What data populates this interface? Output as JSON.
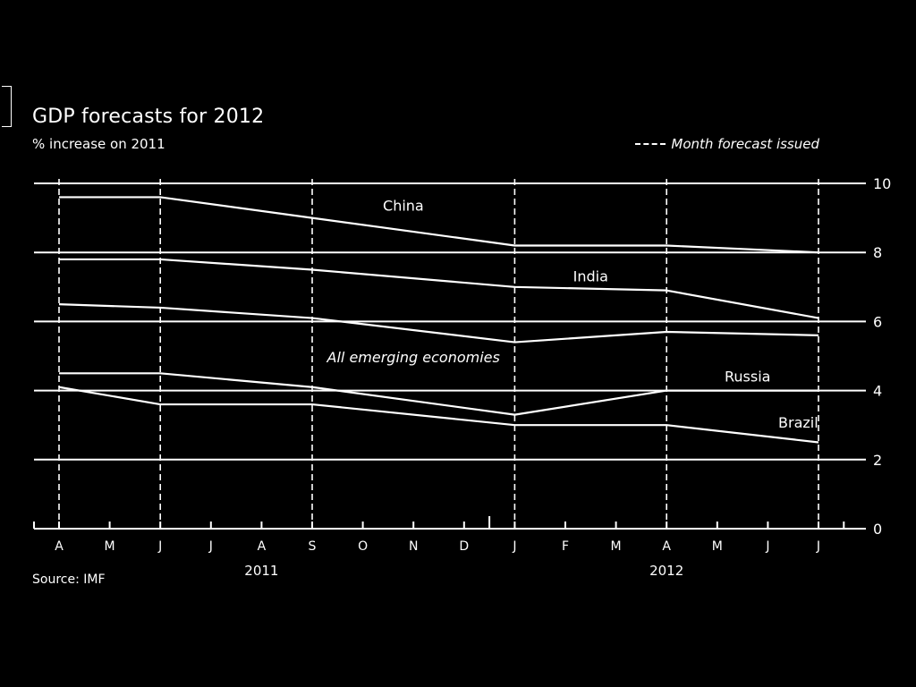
{
  "chart_data": {
    "type": "line",
    "title": "GDP forecasts for 2012",
    "subtitle": "% increase on 2011",
    "source": "Source: IMF",
    "legend_label": "Month forecast issued",
    "legend_position": "top-right",
    "x_ticks": [
      "A",
      "M",
      "J",
      "J",
      "A",
      "S",
      "O",
      "N",
      "D",
      "J",
      "F",
      "M",
      "A",
      "M",
      "J",
      "J"
    ],
    "year_labels": [
      {
        "label": "2011",
        "at": 4
      },
      {
        "label": "2012",
        "at": 12
      }
    ],
    "forecast_months": [
      0,
      2,
      5,
      9,
      12,
      15
    ],
    "ylim": [
      0,
      10
    ],
    "y_ticks": [
      0,
      2,
      4,
      6,
      8,
      10
    ],
    "grid": true,
    "series": [
      {
        "name": "China",
        "x": [
          0,
          2,
          5,
          9,
          12,
          15
        ],
        "values": [
          9.6,
          9.6,
          9.0,
          8.2,
          8.2,
          8.0
        ]
      },
      {
        "name": "India",
        "x": [
          0,
          2,
          5,
          9,
          12,
          15
        ],
        "values": [
          7.8,
          7.8,
          7.5,
          7.0,
          6.9,
          6.1
        ]
      },
      {
        "name": "All emerging economies",
        "x": [
          0,
          2,
          5,
          9,
          12,
          15
        ],
        "values": [
          6.5,
          6.4,
          6.1,
          5.4,
          5.7,
          5.6
        ]
      },
      {
        "name": "Russia",
        "x": [
          0,
          2,
          5,
          9,
          12,
          15
        ],
        "values": [
          4.5,
          4.5,
          4.1,
          3.3,
          4.0,
          4.0
        ]
      },
      {
        "name": "Brazil",
        "x": [
          0,
          2,
          5,
          9,
          12,
          15
        ],
        "values": [
          4.1,
          3.6,
          3.6,
          3.0,
          3.0,
          2.5
        ]
      }
    ]
  }
}
